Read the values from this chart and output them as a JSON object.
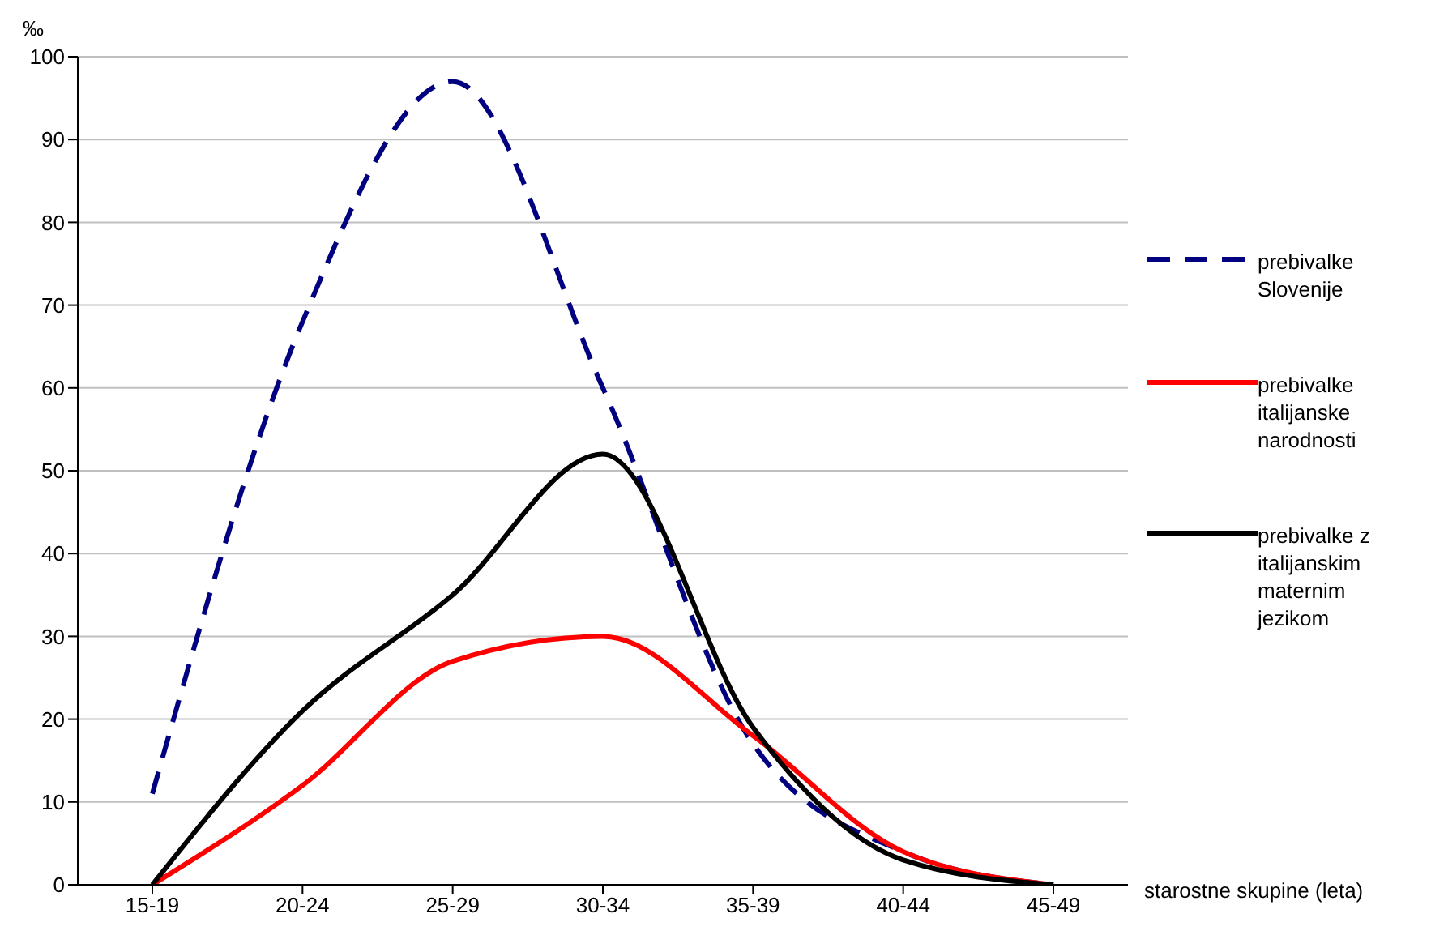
{
  "chart_data": {
    "type": "line",
    "xlabel": "starostne skupine (leta)",
    "ylabel": "‰",
    "categories": [
      "15-19",
      "20-24",
      "25-29",
      "30-34",
      "35-39",
      "40-44",
      "45-49"
    ],
    "series": [
      {
        "name": "prebivalke Slovenije",
        "color": "#000080",
        "line_style": "dashed",
        "values": [
          11,
          68,
          97,
          60,
          17,
          4,
          0
        ]
      },
      {
        "name": "prebivalke italijanske narodnosti",
        "color": "#ff0000",
        "line_style": "solid",
        "values": [
          0,
          12,
          27,
          30,
          18,
          4,
          0
        ]
      },
      {
        "name": "prebivalke z italijanskim maternim jezikom",
        "color": "#000000",
        "line_style": "solid",
        "values": [
          0,
          21,
          35,
          52,
          19,
          3,
          0
        ]
      }
    ],
    "ylim": [
      0,
      100
    ],
    "yticks": [
      0,
      10,
      20,
      30,
      40,
      50,
      60,
      70,
      80,
      90,
      100
    ],
    "grid": "y",
    "legend": "right",
    "marker": "none"
  }
}
